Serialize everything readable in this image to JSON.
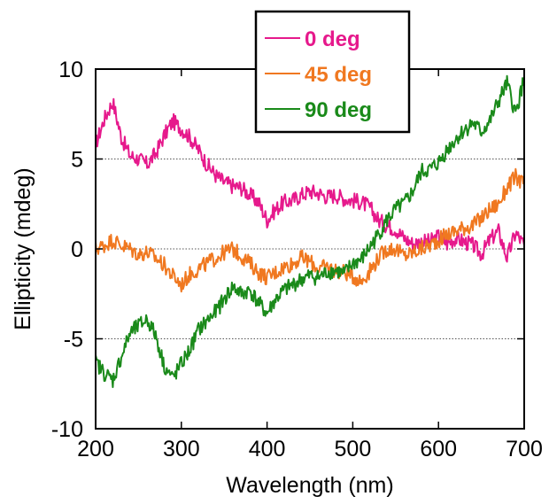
{
  "chart_data": {
    "type": "line",
    "title": "",
    "xlabel": "Wavelength (nm)",
    "ylabel": "Ellipticity (mdeg)",
    "xlim": [
      200,
      700
    ],
    "ylim": [
      -10,
      10
    ],
    "xticks": [
      200,
      300,
      400,
      500,
      600,
      700
    ],
    "yticks": [
      -10,
      -5,
      0,
      5,
      10
    ],
    "x_tick_labels": [
      "200",
      "300",
      "400",
      "500",
      "600",
      "700"
    ],
    "y_tick_labels": [
      "-10",
      "-5",
      "0",
      "5",
      "10"
    ],
    "grid": "horizontal dotted at -5, 0, 5",
    "legend_position": "top-center",
    "series": [
      {
        "name": "0 deg",
        "color": "#e6198c",
        "x": [
          200,
          210,
          220,
          230,
          240,
          250,
          260,
          270,
          280,
          290,
          300,
          310,
          320,
          330,
          340,
          350,
          360,
          370,
          380,
          390,
          400,
          410,
          420,
          430,
          440,
          450,
          460,
          470,
          480,
          490,
          500,
          510,
          520,
          530,
          540,
          550,
          560,
          570,
          580,
          590,
          600,
          610,
          620,
          630,
          640,
          650,
          660,
          670,
          680,
          690,
          700
        ],
        "y": [
          5.8,
          7.2,
          8.2,
          6.2,
          5.2,
          5.0,
          4.7,
          5.3,
          6.3,
          7.1,
          6.7,
          6.2,
          5.5,
          4.7,
          4.1,
          3.7,
          3.5,
          3.4,
          3.0,
          2.6,
          1.6,
          2.2,
          2.6,
          2.7,
          3.0,
          3.2,
          3.1,
          2.9,
          3.0,
          2.8,
          2.7,
          2.6,
          2.3,
          1.6,
          1.3,
          1.1,
          0.6,
          0.3,
          0.4,
          0.4,
          0.7,
          0.3,
          0.6,
          0.4,
          0.2,
          -0.3,
          0.5,
          1.0,
          -0.5,
          0.9,
          0.2
        ]
      },
      {
        "name": "45 deg",
        "color": "#f07820",
        "x": [
          200,
          210,
          220,
          230,
          240,
          250,
          260,
          270,
          280,
          290,
          300,
          310,
          320,
          330,
          340,
          350,
          360,
          370,
          380,
          390,
          400,
          410,
          420,
          430,
          440,
          450,
          460,
          470,
          480,
          490,
          500,
          510,
          520,
          530,
          540,
          550,
          560,
          570,
          580,
          590,
          600,
          610,
          620,
          630,
          640,
          650,
          660,
          670,
          680,
          690,
          700
        ],
        "y": [
          0.0,
          0.2,
          0.5,
          0.2,
          0.0,
          -0.3,
          -0.2,
          -0.5,
          -0.9,
          -1.5,
          -2.0,
          -1.4,
          -1.1,
          -0.8,
          -0.5,
          -0.2,
          0.0,
          -0.4,
          -0.8,
          -1.3,
          -1.6,
          -1.3,
          -1.0,
          -0.8,
          -0.5,
          -0.7,
          -1.1,
          -1.0,
          -1.2,
          -1.3,
          -1.5,
          -1.8,
          -1.2,
          -0.5,
          0.0,
          0.0,
          -0.4,
          -0.2,
          0.0,
          0.2,
          0.5,
          0.8,
          1.0,
          1.2,
          1.3,
          1.7,
          2.2,
          2.5,
          3.4,
          4.0,
          3.6
        ]
      },
      {
        "name": "90 deg",
        "color": "#1a8a1a",
        "x": [
          200,
          210,
          220,
          230,
          240,
          250,
          260,
          270,
          280,
          290,
          300,
          310,
          320,
          330,
          340,
          350,
          360,
          370,
          380,
          390,
          400,
          410,
          420,
          430,
          440,
          450,
          460,
          470,
          480,
          490,
          500,
          510,
          520,
          530,
          540,
          550,
          560,
          570,
          580,
          590,
          600,
          610,
          620,
          630,
          640,
          650,
          660,
          670,
          680,
          690,
          700
        ],
        "y": [
          -6.3,
          -6.9,
          -7.3,
          -6.0,
          -4.7,
          -4.3,
          -3.9,
          -4.8,
          -6.5,
          -7.2,
          -6.4,
          -5.6,
          -4.5,
          -4.0,
          -3.5,
          -2.8,
          -2.1,
          -2.5,
          -2.3,
          -3.0,
          -3.6,
          -2.8,
          -2.3,
          -2.0,
          -1.7,
          -1.5,
          -1.6,
          -1.3,
          -1.2,
          -1.4,
          -0.8,
          -0.6,
          0.1,
          0.8,
          1.6,
          2.2,
          2.5,
          3.2,
          4.3,
          4.4,
          4.8,
          5.5,
          6.1,
          6.6,
          7.0,
          6.5,
          7.1,
          8.2,
          9.2,
          7.5,
          9.5
        ]
      }
    ]
  }
}
